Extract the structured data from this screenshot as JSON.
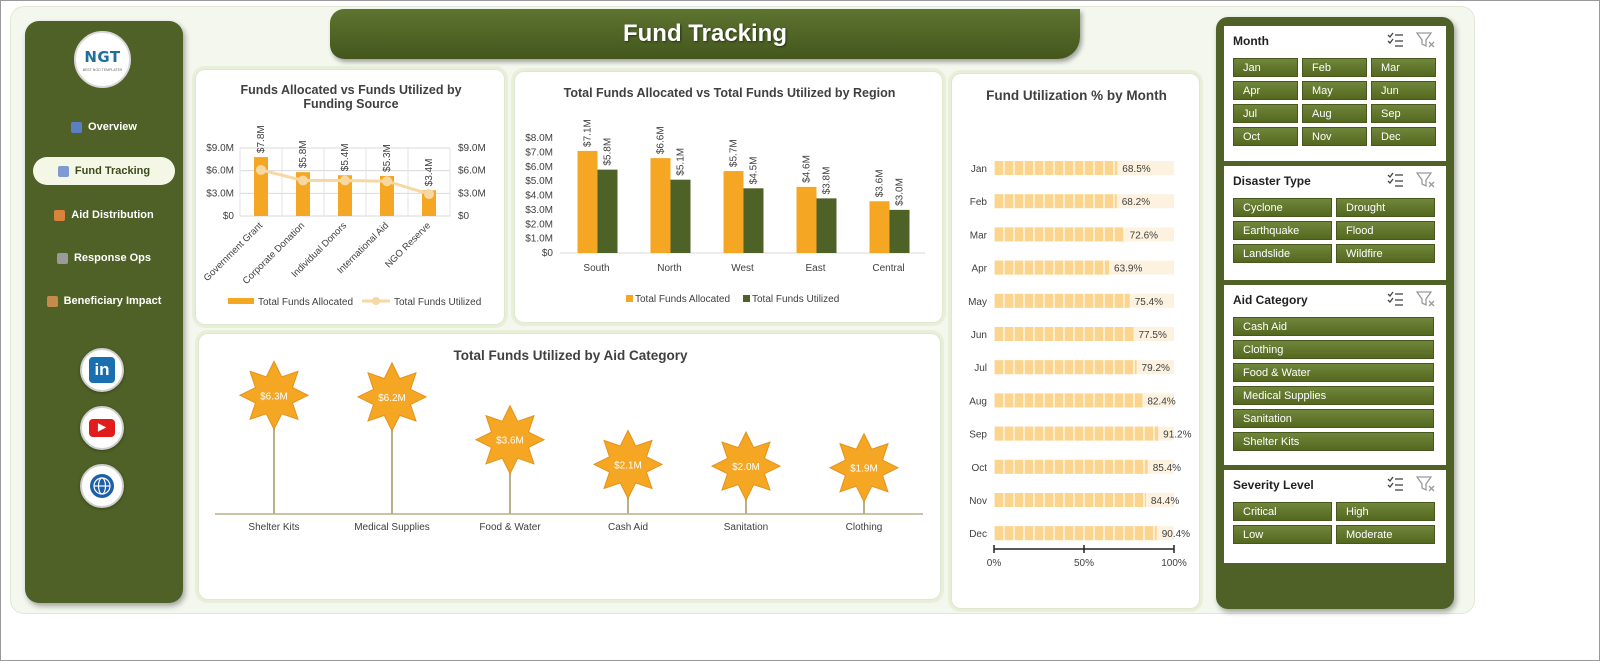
{
  "header": {
    "title": "Fund Tracking"
  },
  "logo": {
    "text": "NGT",
    "subtext": "BEST NGO TEMPLATES"
  },
  "sidebar": {
    "items": [
      {
        "label": "Overview",
        "icon": "chart-icon",
        "active": false
      },
      {
        "label": "Fund Tracking",
        "icon": "trend-icon",
        "active": true
      },
      {
        "label": "Aid Distribution",
        "icon": "truck-icon",
        "active": false
      },
      {
        "label": "Response Ops",
        "icon": "gear-icon",
        "active": false
      },
      {
        "label": "Beneficiary Impact",
        "icon": "clipboard-icon",
        "active": false
      }
    ],
    "social": [
      {
        "name": "linkedin-icon",
        "text": "in",
        "color": "#1a6fb0"
      },
      {
        "name": "youtube-icon",
        "text": "▶",
        "color": "#e21b1b"
      },
      {
        "name": "globe-icon",
        "text": "",
        "color": "#1d5fa8"
      }
    ]
  },
  "colors": {
    "allocated": "#f5a623",
    "utilized": "#4e6126",
    "line": "#f7d8a3",
    "star": "#f5a623",
    "month_bar": "#fbd48e",
    "month_bg": "#fdf2df"
  },
  "chart_data": [
    {
      "type": "bar",
      "title": "Funds Allocated vs Funds Utilized by Funding Source",
      "categories": [
        "Government Grant",
        "Corporate Donation",
        "Individual Donors",
        "International Aid",
        "NGO Reserve"
      ],
      "series": [
        {
          "name": "Total Funds Allocated",
          "values": [
            7.8,
            5.8,
            5.4,
            5.3,
            3.4
          ],
          "labels": [
            "$7.8M",
            "$5.8M",
            "$5.4M",
            "$5.3M",
            "$3.4M"
          ]
        },
        {
          "name": "Total Funds Utilized",
          "values": [
            6.1,
            4.7,
            4.7,
            4.6,
            2.9
          ]
        }
      ],
      "yticks_left": [
        "$9.0M",
        "$6.0M",
        "$3.0M",
        "$0"
      ],
      "yticks_right": [
        "$9.0M",
        "$6.0M",
        "$3.0M",
        "$0"
      ],
      "ylim": [
        0,
        9
      ]
    },
    {
      "type": "bar",
      "title": "Total Funds Allocated vs Total Funds Utilized by Region",
      "categories": [
        "South",
        "North",
        "West",
        "East",
        "Central"
      ],
      "series": [
        {
          "name": "Total Funds Allocated",
          "values": [
            7.1,
            6.6,
            5.7,
            4.6,
            3.6
          ],
          "labels": [
            "$7.1M",
            "$6.6M",
            "$5.7M",
            "$4.6M",
            "$3.6M"
          ]
        },
        {
          "name": "Total Funds Utilized",
          "values": [
            5.8,
            5.1,
            4.5,
            3.8,
            3.0
          ],
          "labels": [
            "$5.8M",
            "$5.1M",
            "$4.5M",
            "$3.8M",
            "$3.0M"
          ]
        }
      ],
      "yticks": [
        "$8.0M",
        "$7.0M",
        "$6.0M",
        "$5.0M",
        "$4.0M",
        "$3.0M",
        "$2.0M",
        "$1.0M",
        "$0"
      ],
      "ylim": [
        0,
        8
      ]
    },
    {
      "type": "bar",
      "orientation": "horizontal",
      "title": "Fund Utilization % by Month",
      "categories": [
        "Jan",
        "Feb",
        "Mar",
        "Apr",
        "May",
        "Jun",
        "Jul",
        "Aug",
        "Sep",
        "Oct",
        "Nov",
        "Dec"
      ],
      "values": [
        68.5,
        68.2,
        72.6,
        63.9,
        75.4,
        77.5,
        79.2,
        82.4,
        91.2,
        85.4,
        84.4,
        90.4
      ],
      "labels": [
        "68.5%",
        "68.2%",
        "72.6%",
        "63.9%",
        "75.4%",
        "77.5%",
        "79.2%",
        "82.4%",
        "91.2%",
        "85.4%",
        "84.4%",
        "90.4%"
      ],
      "xticks": [
        "0%",
        "50%",
        "100%"
      ],
      "xlim": [
        0,
        100
      ]
    },
    {
      "type": "lollipop",
      "title": "Total Funds Utilized by Aid Category",
      "categories": [
        "Shelter Kits",
        "Medical Supplies",
        "Food & Water",
        "Cash Aid",
        "Sanitation",
        "Clothing"
      ],
      "values": [
        6.3,
        6.2,
        3.6,
        2.1,
        2.0,
        1.9
      ],
      "labels": [
        "$6.3M",
        "$6.2M",
        "$3.6M",
        "$2.1M",
        "$2.0M",
        "$1.9M"
      ]
    }
  ],
  "slicers": [
    {
      "title": "Month",
      "columns": 3,
      "items": [
        "Jan",
        "Feb",
        "Mar",
        "Apr",
        "May",
        "Jun",
        "Jul",
        "Aug",
        "Sep",
        "Oct",
        "Nov",
        "Dec"
      ]
    },
    {
      "title": "Disaster Type",
      "columns": 2,
      "items": [
        "Cyclone",
        "Drought",
        "Earthquake",
        "Flood",
        "Landslide",
        "Wildfire"
      ]
    },
    {
      "title": "Aid Category",
      "columns": 1,
      "items": [
        "Cash Aid",
        "Clothing",
        "Food & Water",
        "Medical Supplies",
        "Sanitation",
        "Shelter Kits"
      ]
    },
    {
      "title": "Severity Level",
      "columns": 2,
      "items": [
        "Critical",
        "High",
        "Low",
        "Moderate"
      ]
    }
  ]
}
